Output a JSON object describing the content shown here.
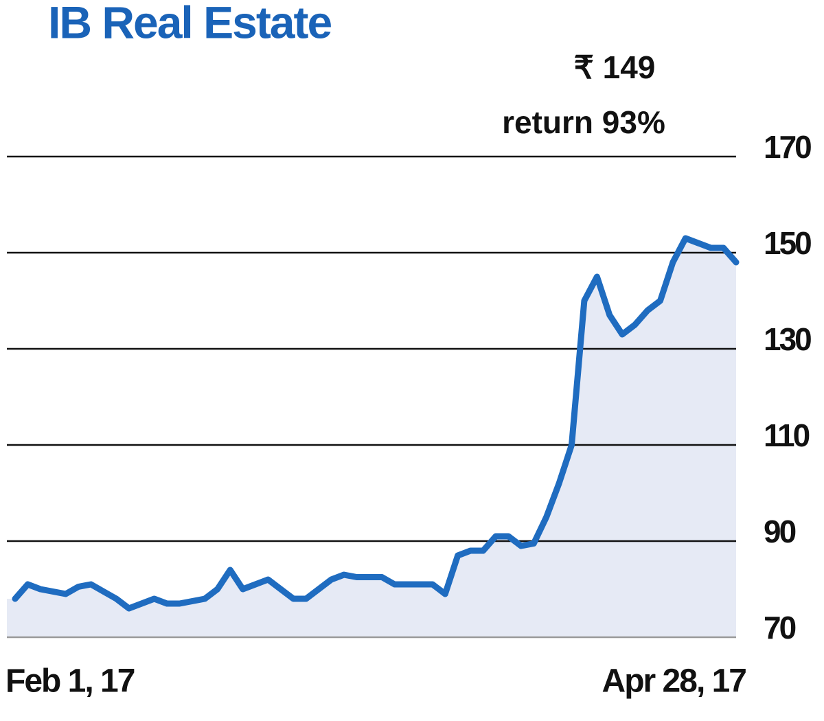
{
  "chart_data": {
    "type": "line",
    "title": "IB Real Estate",
    "annotations": [
      "₹ 149",
      "return 93%"
    ],
    "categories": [
      "Feb 1, 17",
      null,
      null,
      null,
      null,
      null,
      null,
      null,
      null,
      null,
      null,
      null,
      null,
      null,
      null,
      null,
      null,
      null,
      null,
      null,
      null,
      null,
      null,
      null,
      null,
      null,
      null,
      null,
      null,
      null,
      null,
      null,
      null,
      null,
      null,
      null,
      null,
      null,
      null,
      null,
      null,
      null,
      null,
      null,
      null,
      null,
      null,
      null,
      null,
      null,
      null,
      null,
      null,
      null,
      null,
      null,
      null,
      "Apr 28, 17"
    ],
    "values": [
      78,
      81,
      80,
      79.5,
      79,
      80.5,
      81,
      79.5,
      78,
      76,
      77,
      78,
      77,
      77,
      77.5,
      78,
      80,
      84,
      80,
      81,
      82,
      80,
      78,
      78,
      80,
      82,
      83,
      82.5,
      82.5,
      82.5,
      81,
      81,
      81,
      81,
      79,
      87,
      88,
      88,
      91,
      91,
      89,
      89.5,
      95,
      102,
      110,
      140,
      145,
      137,
      133,
      135,
      138,
      140,
      148,
      153,
      152,
      151,
      151,
      148
    ],
    "color": "#1f6cc0",
    "fill": "#e6eaf5",
    "ylim": [
      70,
      170
    ],
    "yticks": [
      70,
      90,
      110,
      130,
      150,
      170
    ],
    "grid": true
  }
}
